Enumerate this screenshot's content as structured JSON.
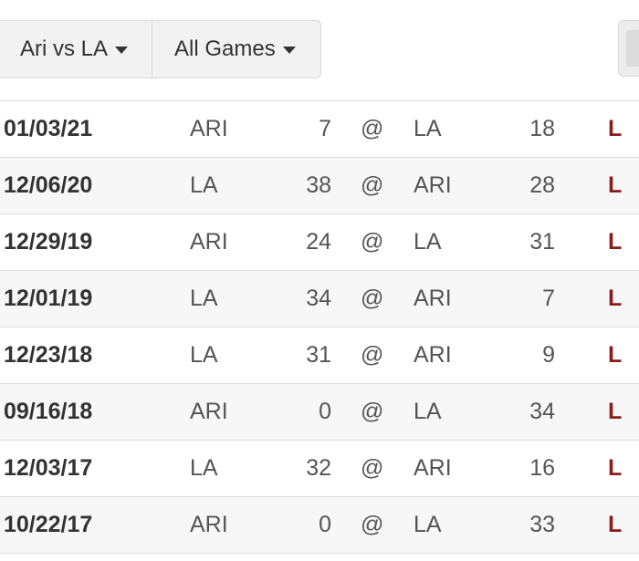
{
  "filters": {
    "matchup_label": "Ari vs LA",
    "games_label": "All Games"
  },
  "games": [
    {
      "date": "01/03/21",
      "away": "ARI",
      "away_score": "7",
      "at": "@",
      "home": "LA",
      "home_score": "18",
      "result": "L"
    },
    {
      "date": "12/06/20",
      "away": "LA",
      "away_score": "38",
      "at": "@",
      "home": "ARI",
      "home_score": "28",
      "result": "L"
    },
    {
      "date": "12/29/19",
      "away": "ARI",
      "away_score": "24",
      "at": "@",
      "home": "LA",
      "home_score": "31",
      "result": "L"
    },
    {
      "date": "12/01/19",
      "away": "LA",
      "away_score": "34",
      "at": "@",
      "home": "ARI",
      "home_score": "7",
      "result": "L"
    },
    {
      "date": "12/23/18",
      "away": "LA",
      "away_score": "31",
      "at": "@",
      "home": "ARI",
      "home_score": "9",
      "result": "L"
    },
    {
      "date": "09/16/18",
      "away": "ARI",
      "away_score": "0",
      "at": "@",
      "home": "LA",
      "home_score": "34",
      "result": "L"
    },
    {
      "date": "12/03/17",
      "away": "LA",
      "away_score": "32",
      "at": "@",
      "home": "ARI",
      "home_score": "16",
      "result": "L"
    },
    {
      "date": "10/22/17",
      "away": "ARI",
      "away_score": "0",
      "at": "@",
      "home": "LA",
      "home_score": "33",
      "result": "L"
    }
  ],
  "colors": {
    "loss": "#8b1a1a",
    "filter_bg": "#f2f2f2",
    "stripe": "#f7f7f7"
  }
}
